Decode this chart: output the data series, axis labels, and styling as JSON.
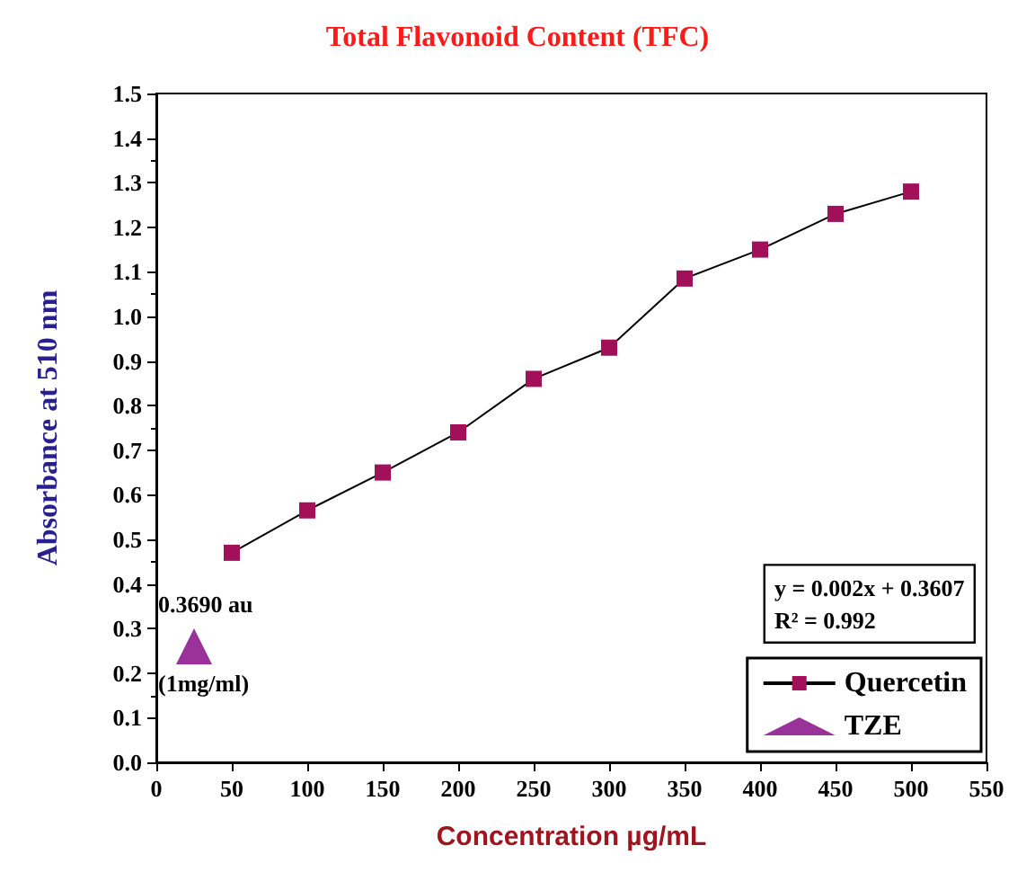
{
  "chart_data": {
    "type": "line",
    "title": "Total Flavonoid Content (TFC)",
    "xlabel": "Concentration µg/mL",
    "ylabel": "Absorbance at 510 nm",
    "xlim": [
      0,
      550
    ],
    "xticks": [
      0,
      50,
      100,
      150,
      200,
      250,
      300,
      350,
      400,
      450,
      500,
      550
    ],
    "ylim": [
      0,
      1.5
    ],
    "yticks": [
      {
        "value": 0,
        "label": "0.0"
      },
      0.1,
      0.2,
      0.3,
      0.4,
      0.5,
      0.6,
      0.7,
      0.8,
      0.9,
      {
        "value": 1,
        "label": "1.0"
      },
      1.1,
      1.2,
      1.3,
      1.4,
      1.5
    ],
    "series": [
      {
        "name": "Quercetin",
        "marker": "square",
        "color": "#a3105a",
        "x": [
          50,
          100,
          150,
          200,
          250,
          300,
          350,
          400,
          450,
          500
        ],
        "values": [
          0.47,
          0.565,
          0.65,
          0.74,
          0.86,
          0.93,
          1.085,
          1.15,
          1.23,
          1.28
        ]
      },
      {
        "name": "TZE",
        "type": "scatter",
        "marker": "triangle",
        "color": "#800080",
        "x": [
          25
        ],
        "values": [
          0.26
        ]
      }
    ],
    "annotations": [
      {
        "text": "0.3690 au",
        "x": 25,
        "y": 0.26
      },
      {
        "text": "(1mg/ml)",
        "x": 25,
        "y": 0.26
      },
      "y = 0.002x + 0.3607\nR² = 0.992"
    ],
    "legend": "bottom right",
    "grid": false
  }
}
